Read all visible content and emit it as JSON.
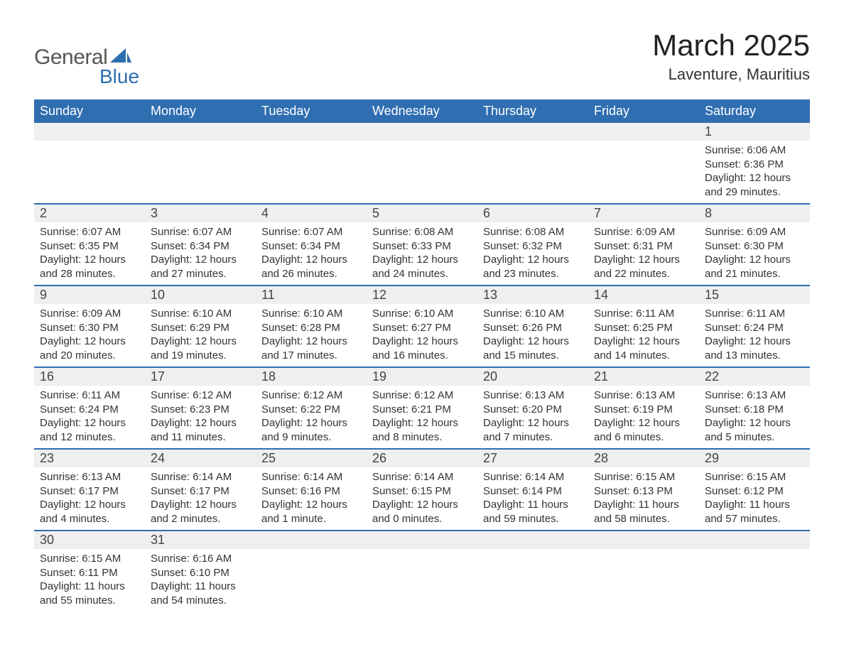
{
  "logo": {
    "text_gray": "General",
    "text_blue": "Blue",
    "sail_color": "#2f6eb0",
    "gray_color": "#555555"
  },
  "header": {
    "month_title": "March 2025",
    "location": "Laventure, Mauritius",
    "title_fontsize": 42,
    "location_fontsize": 22
  },
  "styling": {
    "header_bg": "#2f6eb0",
    "header_text": "#ffffff",
    "daynum_bg": "#efefef",
    "row_border": "#2f6eb0",
    "body_text": "#333333",
    "background": "#ffffff",
    "font_family": "Arial",
    "cell_fontsize": 15,
    "daynum_fontsize": 18,
    "weekday_fontsize": 18
  },
  "weekdays": [
    "Sunday",
    "Monday",
    "Tuesday",
    "Wednesday",
    "Thursday",
    "Friday",
    "Saturday"
  ],
  "weeks": [
    {
      "days": [
        null,
        null,
        null,
        null,
        null,
        null,
        {
          "num": "1",
          "sunrise": "Sunrise: 6:06 AM",
          "sunset": "Sunset: 6:36 PM",
          "daylight": "Daylight: 12 hours and 29 minutes."
        }
      ]
    },
    {
      "days": [
        {
          "num": "2",
          "sunrise": "Sunrise: 6:07 AM",
          "sunset": "Sunset: 6:35 PM",
          "daylight": "Daylight: 12 hours and 28 minutes."
        },
        {
          "num": "3",
          "sunrise": "Sunrise: 6:07 AM",
          "sunset": "Sunset: 6:34 PM",
          "daylight": "Daylight: 12 hours and 27 minutes."
        },
        {
          "num": "4",
          "sunrise": "Sunrise: 6:07 AM",
          "sunset": "Sunset: 6:34 PM",
          "daylight": "Daylight: 12 hours and 26 minutes."
        },
        {
          "num": "5",
          "sunrise": "Sunrise: 6:08 AM",
          "sunset": "Sunset: 6:33 PM",
          "daylight": "Daylight: 12 hours and 24 minutes."
        },
        {
          "num": "6",
          "sunrise": "Sunrise: 6:08 AM",
          "sunset": "Sunset: 6:32 PM",
          "daylight": "Daylight: 12 hours and 23 minutes."
        },
        {
          "num": "7",
          "sunrise": "Sunrise: 6:09 AM",
          "sunset": "Sunset: 6:31 PM",
          "daylight": "Daylight: 12 hours and 22 minutes."
        },
        {
          "num": "8",
          "sunrise": "Sunrise: 6:09 AM",
          "sunset": "Sunset: 6:30 PM",
          "daylight": "Daylight: 12 hours and 21 minutes."
        }
      ]
    },
    {
      "days": [
        {
          "num": "9",
          "sunrise": "Sunrise: 6:09 AM",
          "sunset": "Sunset: 6:30 PM",
          "daylight": "Daylight: 12 hours and 20 minutes."
        },
        {
          "num": "10",
          "sunrise": "Sunrise: 6:10 AM",
          "sunset": "Sunset: 6:29 PM",
          "daylight": "Daylight: 12 hours and 19 minutes."
        },
        {
          "num": "11",
          "sunrise": "Sunrise: 6:10 AM",
          "sunset": "Sunset: 6:28 PM",
          "daylight": "Daylight: 12 hours and 17 minutes."
        },
        {
          "num": "12",
          "sunrise": "Sunrise: 6:10 AM",
          "sunset": "Sunset: 6:27 PM",
          "daylight": "Daylight: 12 hours and 16 minutes."
        },
        {
          "num": "13",
          "sunrise": "Sunrise: 6:10 AM",
          "sunset": "Sunset: 6:26 PM",
          "daylight": "Daylight: 12 hours and 15 minutes."
        },
        {
          "num": "14",
          "sunrise": "Sunrise: 6:11 AM",
          "sunset": "Sunset: 6:25 PM",
          "daylight": "Daylight: 12 hours and 14 minutes."
        },
        {
          "num": "15",
          "sunrise": "Sunrise: 6:11 AM",
          "sunset": "Sunset: 6:24 PM",
          "daylight": "Daylight: 12 hours and 13 minutes."
        }
      ]
    },
    {
      "days": [
        {
          "num": "16",
          "sunrise": "Sunrise: 6:11 AM",
          "sunset": "Sunset: 6:24 PM",
          "daylight": "Daylight: 12 hours and 12 minutes."
        },
        {
          "num": "17",
          "sunrise": "Sunrise: 6:12 AM",
          "sunset": "Sunset: 6:23 PM",
          "daylight": "Daylight: 12 hours and 11 minutes."
        },
        {
          "num": "18",
          "sunrise": "Sunrise: 6:12 AM",
          "sunset": "Sunset: 6:22 PM",
          "daylight": "Daylight: 12 hours and 9 minutes."
        },
        {
          "num": "19",
          "sunrise": "Sunrise: 6:12 AM",
          "sunset": "Sunset: 6:21 PM",
          "daylight": "Daylight: 12 hours and 8 minutes."
        },
        {
          "num": "20",
          "sunrise": "Sunrise: 6:13 AM",
          "sunset": "Sunset: 6:20 PM",
          "daylight": "Daylight: 12 hours and 7 minutes."
        },
        {
          "num": "21",
          "sunrise": "Sunrise: 6:13 AM",
          "sunset": "Sunset: 6:19 PM",
          "daylight": "Daylight: 12 hours and 6 minutes."
        },
        {
          "num": "22",
          "sunrise": "Sunrise: 6:13 AM",
          "sunset": "Sunset: 6:18 PM",
          "daylight": "Daylight: 12 hours and 5 minutes."
        }
      ]
    },
    {
      "days": [
        {
          "num": "23",
          "sunrise": "Sunrise: 6:13 AM",
          "sunset": "Sunset: 6:17 PM",
          "daylight": "Daylight: 12 hours and 4 minutes."
        },
        {
          "num": "24",
          "sunrise": "Sunrise: 6:14 AM",
          "sunset": "Sunset: 6:17 PM",
          "daylight": "Daylight: 12 hours and 2 minutes."
        },
        {
          "num": "25",
          "sunrise": "Sunrise: 6:14 AM",
          "sunset": "Sunset: 6:16 PM",
          "daylight": "Daylight: 12 hours and 1 minute."
        },
        {
          "num": "26",
          "sunrise": "Sunrise: 6:14 AM",
          "sunset": "Sunset: 6:15 PM",
          "daylight": "Daylight: 12 hours and 0 minutes."
        },
        {
          "num": "27",
          "sunrise": "Sunrise: 6:14 AM",
          "sunset": "Sunset: 6:14 PM",
          "daylight": "Daylight: 11 hours and 59 minutes."
        },
        {
          "num": "28",
          "sunrise": "Sunrise: 6:15 AM",
          "sunset": "Sunset: 6:13 PM",
          "daylight": "Daylight: 11 hours and 58 minutes."
        },
        {
          "num": "29",
          "sunrise": "Sunrise: 6:15 AM",
          "sunset": "Sunset: 6:12 PM",
          "daylight": "Daylight: 11 hours and 57 minutes."
        }
      ]
    },
    {
      "days": [
        {
          "num": "30",
          "sunrise": "Sunrise: 6:15 AM",
          "sunset": "Sunset: 6:11 PM",
          "daylight": "Daylight: 11 hours and 55 minutes."
        },
        {
          "num": "31",
          "sunrise": "Sunrise: 6:16 AM",
          "sunset": "Sunset: 6:10 PM",
          "daylight": "Daylight: 11 hours and 54 minutes."
        },
        null,
        null,
        null,
        null,
        null
      ]
    }
  ]
}
